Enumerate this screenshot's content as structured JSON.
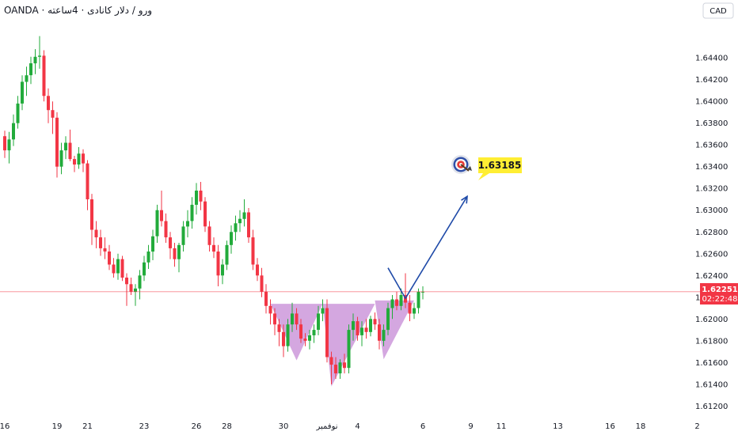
{
  "header": {
    "title": "OANDA · ورو / دلار کانادی · 4ساعته",
    "currency_button": "CAD"
  },
  "colors": {
    "up": "#22ab3b",
    "down": "#f23645",
    "pattern": "#c58ad6",
    "arrow": "#1f4aa8",
    "price_line": "#f23645",
    "target_box": "#ffee33"
  },
  "chart_data": {
    "type": "candlestick",
    "symbol": "OANDA · ورو / دلار کانادی · 4ساعته",
    "currency": "CAD",
    "ylim": [
      1.6105,
      1.6475
    ],
    "y_ticks": [
      "1.64400",
      "1.64200",
      "1.64000",
      "1.63800",
      "1.63600",
      "1.63400",
      "1.63200",
      "1.63000",
      "1.62800",
      "1.62600",
      "1.62400",
      "1.62200",
      "1.62000",
      "1.61800",
      "1.61600",
      "1.61400",
      "1.61200"
    ],
    "x_ticks": [
      {
        "label": "16",
        "bar": 0
      },
      {
        "label": "19",
        "bar": 12
      },
      {
        "label": "21",
        "bar": 19
      },
      {
        "label": "23",
        "bar": 32
      },
      {
        "label": "26",
        "bar": 44
      },
      {
        "label": "28",
        "bar": 51
      },
      {
        "label": "30",
        "bar": 64
      },
      {
        "label": "نوفمبر",
        "bar": 74
      },
      {
        "label": "4",
        "bar": 81
      },
      {
        "label": "6",
        "bar": 96
      },
      {
        "label": "9",
        "bar": 107
      },
      {
        "label": "11",
        "bar": 114
      },
      {
        "label": "13",
        "bar": 127
      },
      {
        "label": "16",
        "bar": 139
      },
      {
        "label": "18",
        "bar": 146
      },
      {
        "label": "2",
        "bar": 159
      }
    ],
    "current_price": "1.62251",
    "countdown": "02:22:48",
    "target": "1.63185",
    "target_value": 1.63185,
    "pattern": "inverse head and shoulders",
    "candles": [
      [
        1.6368,
        1.6373,
        1.6348,
        1.6355
      ],
      [
        1.6355,
        1.6372,
        1.6343,
        1.6365
      ],
      [
        1.6365,
        1.6388,
        1.6359,
        1.638
      ],
      [
        1.638,
        1.6405,
        1.6375,
        1.6398
      ],
      [
        1.6398,
        1.6424,
        1.6392,
        1.6418
      ],
      [
        1.6418,
        1.6432,
        1.6405,
        1.6424
      ],
      [
        1.6424,
        1.6441,
        1.6416,
        1.6435
      ],
      [
        1.6435,
        1.6448,
        1.6425,
        1.6441
      ],
      [
        1.6441,
        1.646,
        1.643,
        1.6442
      ],
      [
        1.6442,
        1.6447,
        1.64,
        1.6405
      ],
      [
        1.6405,
        1.6412,
        1.638,
        1.6392
      ],
      [
        1.6392,
        1.64,
        1.637,
        1.6385
      ],
      [
        1.6385,
        1.639,
        1.633,
        1.634
      ],
      [
        1.634,
        1.6362,
        1.6333,
        1.6355
      ],
      [
        1.6355,
        1.6368,
        1.6347,
        1.6362
      ],
      [
        1.6362,
        1.6374,
        1.6345,
        1.6347
      ],
      [
        1.6347,
        1.635,
        1.6335,
        1.6342
      ],
      [
        1.6342,
        1.6358,
        1.6338,
        1.6352
      ],
      [
        1.6352,
        1.6356,
        1.6335,
        1.6343
      ],
      [
        1.6343,
        1.6346,
        1.63,
        1.631
      ],
      [
        1.631,
        1.6315,
        1.6268,
        1.6282
      ],
      [
        1.6282,
        1.629,
        1.6265,
        1.6275
      ],
      [
        1.6275,
        1.6282,
        1.6258,
        1.6265
      ],
      [
        1.6265,
        1.6275,
        1.6255,
        1.6262
      ],
      [
        1.6262,
        1.6268,
        1.6245,
        1.625
      ],
      [
        1.625,
        1.6256,
        1.6238,
        1.6242
      ],
      [
        1.6242,
        1.626,
        1.6236,
        1.6255
      ],
      [
        1.6255,
        1.6258,
        1.6235,
        1.6238
      ],
      [
        1.6238,
        1.6242,
        1.6212,
        1.6232
      ],
      [
        1.6232,
        1.6238,
        1.6222,
        1.6225
      ],
      [
        1.6225,
        1.6232,
        1.6212,
        1.6228
      ],
      [
        1.6228,
        1.6245,
        1.6218,
        1.624
      ],
      [
        1.624,
        1.6258,
        1.6235,
        1.6252
      ],
      [
        1.6252,
        1.6268,
        1.6246,
        1.6262
      ],
      [
        1.6262,
        1.6282,
        1.6254,
        1.6276
      ],
      [
        1.6276,
        1.6305,
        1.627,
        1.63
      ],
      [
        1.63,
        1.6318,
        1.6285,
        1.629
      ],
      [
        1.629,
        1.6297,
        1.627,
        1.6275
      ],
      [
        1.6275,
        1.628,
        1.6255,
        1.6265
      ],
      [
        1.6265,
        1.627,
        1.6248,
        1.6255
      ],
      [
        1.6255,
        1.627,
        1.6243,
        1.6268
      ],
      [
        1.6268,
        1.629,
        1.6262,
        1.6285
      ],
      [
        1.6285,
        1.63,
        1.6275,
        1.629
      ],
      [
        1.629,
        1.6312,
        1.6283,
        1.6305
      ],
      [
        1.6305,
        1.6325,
        1.6296,
        1.6318
      ],
      [
        1.6318,
        1.6326,
        1.63,
        1.6308
      ],
      [
        1.6308,
        1.6312,
        1.628,
        1.6285
      ],
      [
        1.6285,
        1.629,
        1.6262,
        1.6268
      ],
      [
        1.6268,
        1.6275,
        1.6256,
        1.6262
      ],
      [
        1.6262,
        1.6268,
        1.623,
        1.624
      ],
      [
        1.624,
        1.6255,
        1.6232,
        1.625
      ],
      [
        1.625,
        1.6272,
        1.6245,
        1.6268
      ],
      [
        1.6268,
        1.6286,
        1.626,
        1.628
      ],
      [
        1.628,
        1.6295,
        1.6272,
        1.6288
      ],
      [
        1.6288,
        1.63,
        1.628,
        1.6292
      ],
      [
        1.6292,
        1.631,
        1.6285,
        1.6298
      ],
      [
        1.6298,
        1.6302,
        1.627,
        1.6275
      ],
      [
        1.6275,
        1.6282,
        1.6245,
        1.625
      ],
      [
        1.625,
        1.6256,
        1.6235,
        1.624
      ],
      [
        1.624,
        1.6247,
        1.622,
        1.6225
      ],
      [
        1.6225,
        1.6232,
        1.6205,
        1.6212
      ],
      [
        1.6212,
        1.6218,
        1.6195,
        1.6205
      ],
      [
        1.6205,
        1.621,
        1.6185,
        1.6195
      ],
      [
        1.6195,
        1.62,
        1.6175,
        1.6188
      ],
      [
        1.6188,
        1.6195,
        1.6165,
        1.6175
      ],
      [
        1.6175,
        1.62,
        1.617,
        1.6195
      ],
      [
        1.6195,
        1.6215,
        1.6188,
        1.6205
      ],
      [
        1.6205,
        1.621,
        1.619,
        1.6195
      ],
      [
        1.6195,
        1.62,
        1.6178,
        1.6182
      ],
      [
        1.6182,
        1.6187,
        1.6175,
        1.618
      ],
      [
        1.618,
        1.619,
        1.6172,
        1.6185
      ],
      [
        1.6185,
        1.6195,
        1.6178,
        1.619
      ],
      [
        1.619,
        1.6212,
        1.6185,
        1.6205
      ],
      [
        1.6205,
        1.6218,
        1.6198,
        1.621
      ],
      [
        1.621,
        1.6218,
        1.616,
        1.6165
      ],
      [
        1.6165,
        1.617,
        1.614,
        1.6158
      ],
      [
        1.6158,
        1.6165,
        1.6145,
        1.615
      ],
      [
        1.615,
        1.6163,
        1.6145,
        1.616
      ],
      [
        1.616,
        1.6168,
        1.615,
        1.6155
      ],
      [
        1.6155,
        1.6195,
        1.615,
        1.619
      ],
      [
        1.619,
        1.6205,
        1.618,
        1.6198
      ],
      [
        1.6198,
        1.6202,
        1.618,
        1.6185
      ],
      [
        1.6185,
        1.6198,
        1.6175,
        1.6192
      ],
      [
        1.6192,
        1.62,
        1.6182,
        1.6188
      ],
      [
        1.6188,
        1.6203,
        1.6184,
        1.62
      ],
      [
        1.62,
        1.6206,
        1.619,
        1.6195
      ],
      [
        1.6195,
        1.62,
        1.6172,
        1.618
      ],
      [
        1.618,
        1.6195,
        1.6175,
        1.619
      ],
      [
        1.619,
        1.6215,
        1.6185,
        1.621
      ],
      [
        1.621,
        1.6222,
        1.62,
        1.6218
      ],
      [
        1.6218,
        1.6225,
        1.6208,
        1.6212
      ],
      [
        1.6212,
        1.6228,
        1.6208,
        1.6222
      ],
      [
        1.6222,
        1.6242,
        1.621,
        1.6215
      ],
      [
        1.6215,
        1.6222,
        1.6198,
        1.6205
      ],
      [
        1.6205,
        1.6215,
        1.62,
        1.621
      ],
      [
        1.621,
        1.6228,
        1.6205,
        1.6225
      ],
      [
        1.6225,
        1.623,
        1.6218,
        1.6225
      ]
    ]
  }
}
